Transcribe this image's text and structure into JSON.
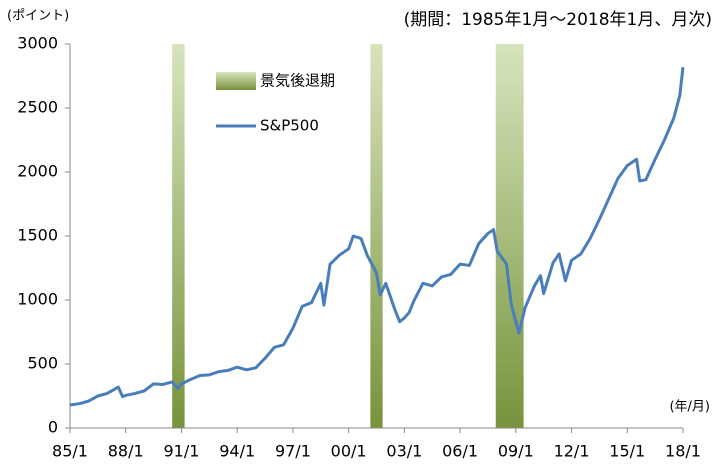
{
  "chart_data": {
    "type": "line",
    "title": "(期間：1985年1月～2018年1月、月次)",
    "y_label": "(ポイント)",
    "x_label": "(年/月)",
    "x": [
      1985.0,
      1985.5,
      1986.0,
      1986.5,
      1987.0,
      1987.6,
      1987.83,
      1988.0,
      1988.5,
      1989.0,
      1989.5,
      1990.0,
      1990.5,
      1990.8,
      1991.0,
      1991.5,
      1992.0,
      1992.5,
      1993.0,
      1993.5,
      1994.0,
      1994.5,
      1995.0,
      1995.5,
      1996.0,
      1996.5,
      1997.0,
      1997.5,
      1998.0,
      1998.5,
      1998.67,
      1999.0,
      1999.5,
      2000.0,
      2000.25,
      2000.67,
      2001.0,
      2001.5,
      2001.7,
      2002.0,
      2002.5,
      2002.75,
      2003.0,
      2003.25,
      2003.5,
      2004.0,
      2004.5,
      2005.0,
      2005.5,
      2006.0,
      2006.5,
      2007.0,
      2007.5,
      2007.8,
      2008.0,
      2008.5,
      2008.75,
      2009.0,
      2009.17,
      2009.5,
      2010.0,
      2010.33,
      2010.5,
      2011.0,
      2011.33,
      2011.67,
      2012.0,
      2012.5,
      2013.0,
      2013.5,
      2014.0,
      2014.5,
      2015.0,
      2015.5,
      2015.67,
      2016.0,
      2016.5,
      2017.0,
      2017.5,
      2017.83,
      2018.0
    ],
    "series": [
      {
        "name": "S&P500",
        "color": "#4a7ebb",
        "values": [
          180,
          190,
          210,
          250,
          270,
          320,
          245,
          255,
          270,
          290,
          345,
          340,
          360,
          310,
          345,
          380,
          410,
          415,
          440,
          450,
          475,
          455,
          470,
          545,
          630,
          650,
          780,
          950,
          980,
          1130,
          960,
          1280,
          1350,
          1400,
          1500,
          1480,
          1350,
          1210,
          1040,
          1130,
          920,
          830,
          860,
          900,
          990,
          1130,
          1110,
          1180,
          1200,
          1280,
          1270,
          1440,
          1520,
          1550,
          1380,
          1280,
          970,
          830,
          740,
          940,
          1110,
          1190,
          1050,
          1290,
          1360,
          1150,
          1310,
          1360,
          1480,
          1630,
          1790,
          1950,
          2050,
          2100,
          1930,
          1940,
          2100,
          2250,
          2420,
          2600,
          2820
        ]
      }
    ],
    "bands": {
      "name": "景気後退期",
      "colors": [
        "#d7e4bd",
        "#77933c"
      ],
      "ranges": [
        [
          1990.5,
          1991.17
        ],
        [
          2001.17,
          2001.83
        ],
        [
          2007.92,
          2009.42
        ]
      ]
    },
    "xlim": [
      1985,
      2018
    ],
    "xticks": [
      {
        "value": 1985,
        "label": "85/1"
      },
      {
        "value": 1988,
        "label": "88/1"
      },
      {
        "value": 1991,
        "label": "91/1"
      },
      {
        "value": 1994,
        "label": "94/1"
      },
      {
        "value": 1997,
        "label": "97/1"
      },
      {
        "value": 2000,
        "label": "00/1"
      },
      {
        "value": 2003,
        "label": "03/1"
      },
      {
        "value": 2006,
        "label": "06/1"
      },
      {
        "value": 2009,
        "label": "09/1"
      },
      {
        "value": 2012,
        "label": "12/1"
      },
      {
        "value": 2015,
        "label": "15/1"
      },
      {
        "value": 2018,
        "label": "18/1"
      }
    ],
    "ylim": [
      0,
      3000
    ],
    "yticks": [
      0,
      500,
      1000,
      1500,
      2000,
      2500,
      3000
    ]
  }
}
